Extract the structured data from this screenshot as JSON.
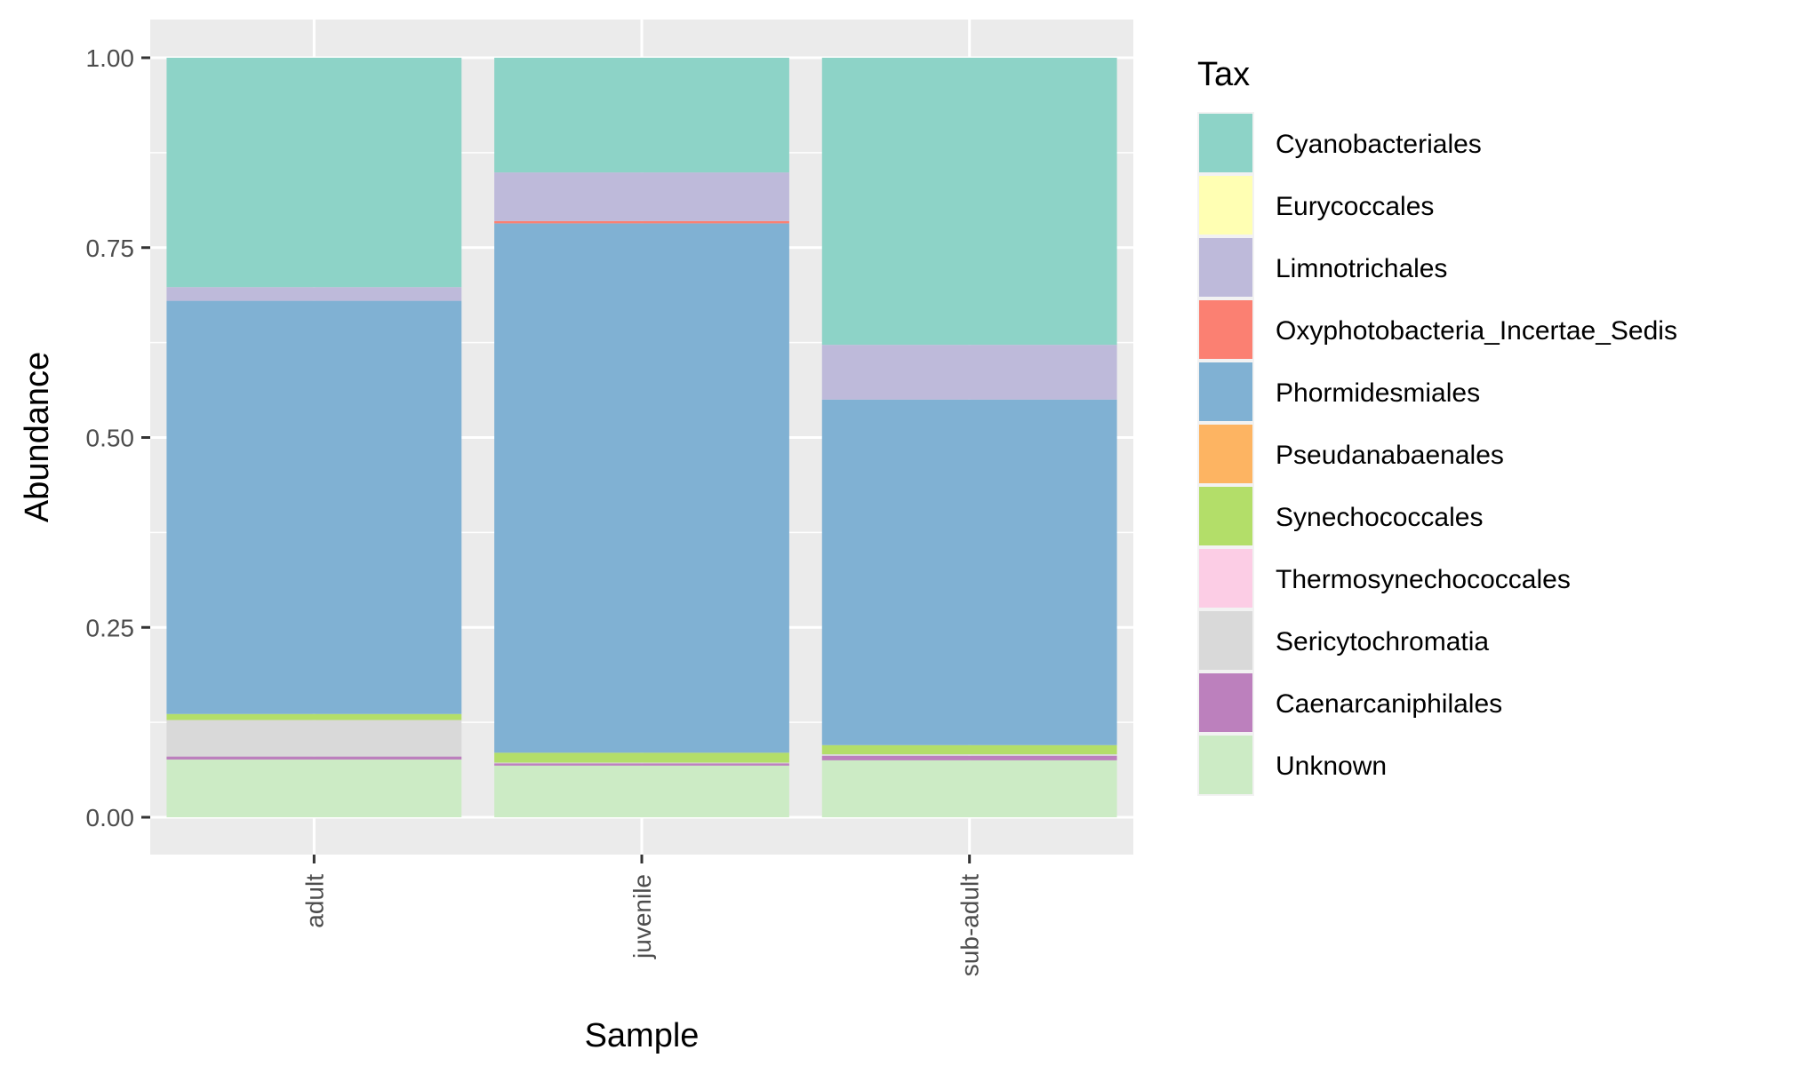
{
  "chart_data": {
    "type": "bar",
    "stacked": true,
    "xlabel": "Sample",
    "ylabel": "Abundance",
    "ylim": [
      0,
      1
    ],
    "yticks": [
      "0.00",
      "0.25",
      "0.50",
      "0.75",
      "1.00"
    ],
    "categories": [
      "adult",
      "juvenile",
      "sub-adult"
    ],
    "legend_title": "Tax",
    "legend_position": "right",
    "grid": true,
    "series": [
      {
        "name": "Unknown",
        "color": "#CCEBC5",
        "values": [
          0.076,
          0.068,
          0.075
        ]
      },
      {
        "name": "Caenarcaniphilales",
        "color": "#BC80BD",
        "values": [
          0.004,
          0.003,
          0.006
        ]
      },
      {
        "name": "Sericytochromatia",
        "color": "#D9D9D9",
        "values": [
          0.048,
          0.001,
          0.002
        ]
      },
      {
        "name": "Thermosynechococcales",
        "color": "#FCCDE5",
        "values": [
          0.0,
          0.0,
          0.0
        ]
      },
      {
        "name": "Synechococcales",
        "color": "#B3DE69",
        "values": [
          0.008,
          0.013,
          0.012
        ]
      },
      {
        "name": "Pseudanabaenales",
        "color": "#FDB462",
        "values": [
          0.0,
          0.0,
          0.0
        ]
      },
      {
        "name": "Phormidesmiales",
        "color": "#80B1D3",
        "values": [
          0.544,
          0.697,
          0.455
        ]
      },
      {
        "name": "Oxyphotobacteria_Incertae_Sedis",
        "color": "#FB8072",
        "values": [
          0.0,
          0.003,
          0.0
        ]
      },
      {
        "name": "Limnotrichales",
        "color": "#BEBADA",
        "values": [
          0.018,
          0.064,
          0.072
        ]
      },
      {
        "name": "Eurycoccales",
        "color": "#FFFFB3",
        "values": [
          0.0,
          0.0,
          0.0
        ]
      },
      {
        "name": "Cyanobacteriales",
        "color": "#8DD3C7",
        "values": [
          0.302,
          0.151,
          0.378
        ]
      }
    ],
    "legend_order": [
      "Cyanobacteriales",
      "Eurycoccales",
      "Limnotrichales",
      "Oxyphotobacteria_Incertae_Sedis",
      "Phormidesmiales",
      "Pseudanabaenales",
      "Synechococcales",
      "Thermosynechococcales",
      "Sericytochromatia",
      "Caenarcaniphilales",
      "Unknown"
    ],
    "colors": {
      "panel_background": "#EBEBEB",
      "gridline": "#FFFFFF",
      "tick_text": "#4D4D4D"
    }
  }
}
